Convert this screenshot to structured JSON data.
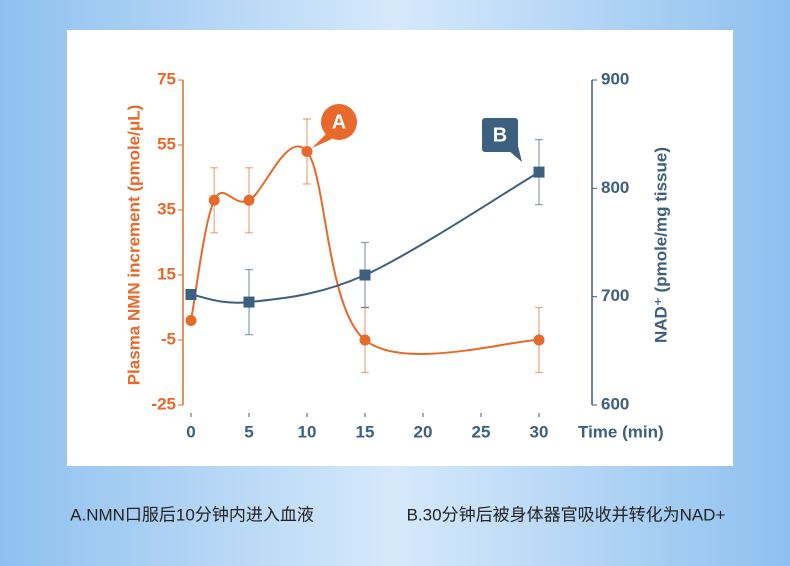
{
  "chart_data": {
    "type": "line",
    "ylabel": "Plasma NMN increment  (pmole/μL)",
    "y2label": "NAD⁺ (pmole/mg tissue)",
    "xlabel": "Time (min)",
    "xlim": [
      0,
      30
    ],
    "xticks": [
      0,
      5,
      10,
      15,
      20,
      25,
      30
    ],
    "ylim": [
      -25,
      75
    ],
    "yticks": [
      75,
      55,
      35,
      15,
      -5,
      -25
    ],
    "y2lim": [
      600,
      900
    ],
    "y2ticks": [
      900,
      800,
      700,
      600
    ],
    "series": [
      {
        "color": "#e8692a",
        "x": [
          0,
          2,
          5,
          10,
          15,
          30
        ],
        "values": [
          1,
          38,
          38,
          53,
          -5,
          -5
        ],
        "errors": [
          null,
          10,
          10,
          10,
          10,
          10
        ]
      },
      {
        "color": "#3d5f80",
        "axis": "y2",
        "x": [
          0,
          5,
          15,
          30
        ],
        "values": [
          702,
          695,
          720,
          815
        ],
        "errors": [
          null,
          30,
          30,
          30
        ]
      }
    ],
    "annotations": [
      "A",
      "B"
    ],
    "captions": [
      "A.NMN口服后10分钟内进入血液",
      "B.30分钟后被身体器官吸收并转化为NAD+"
    ]
  }
}
